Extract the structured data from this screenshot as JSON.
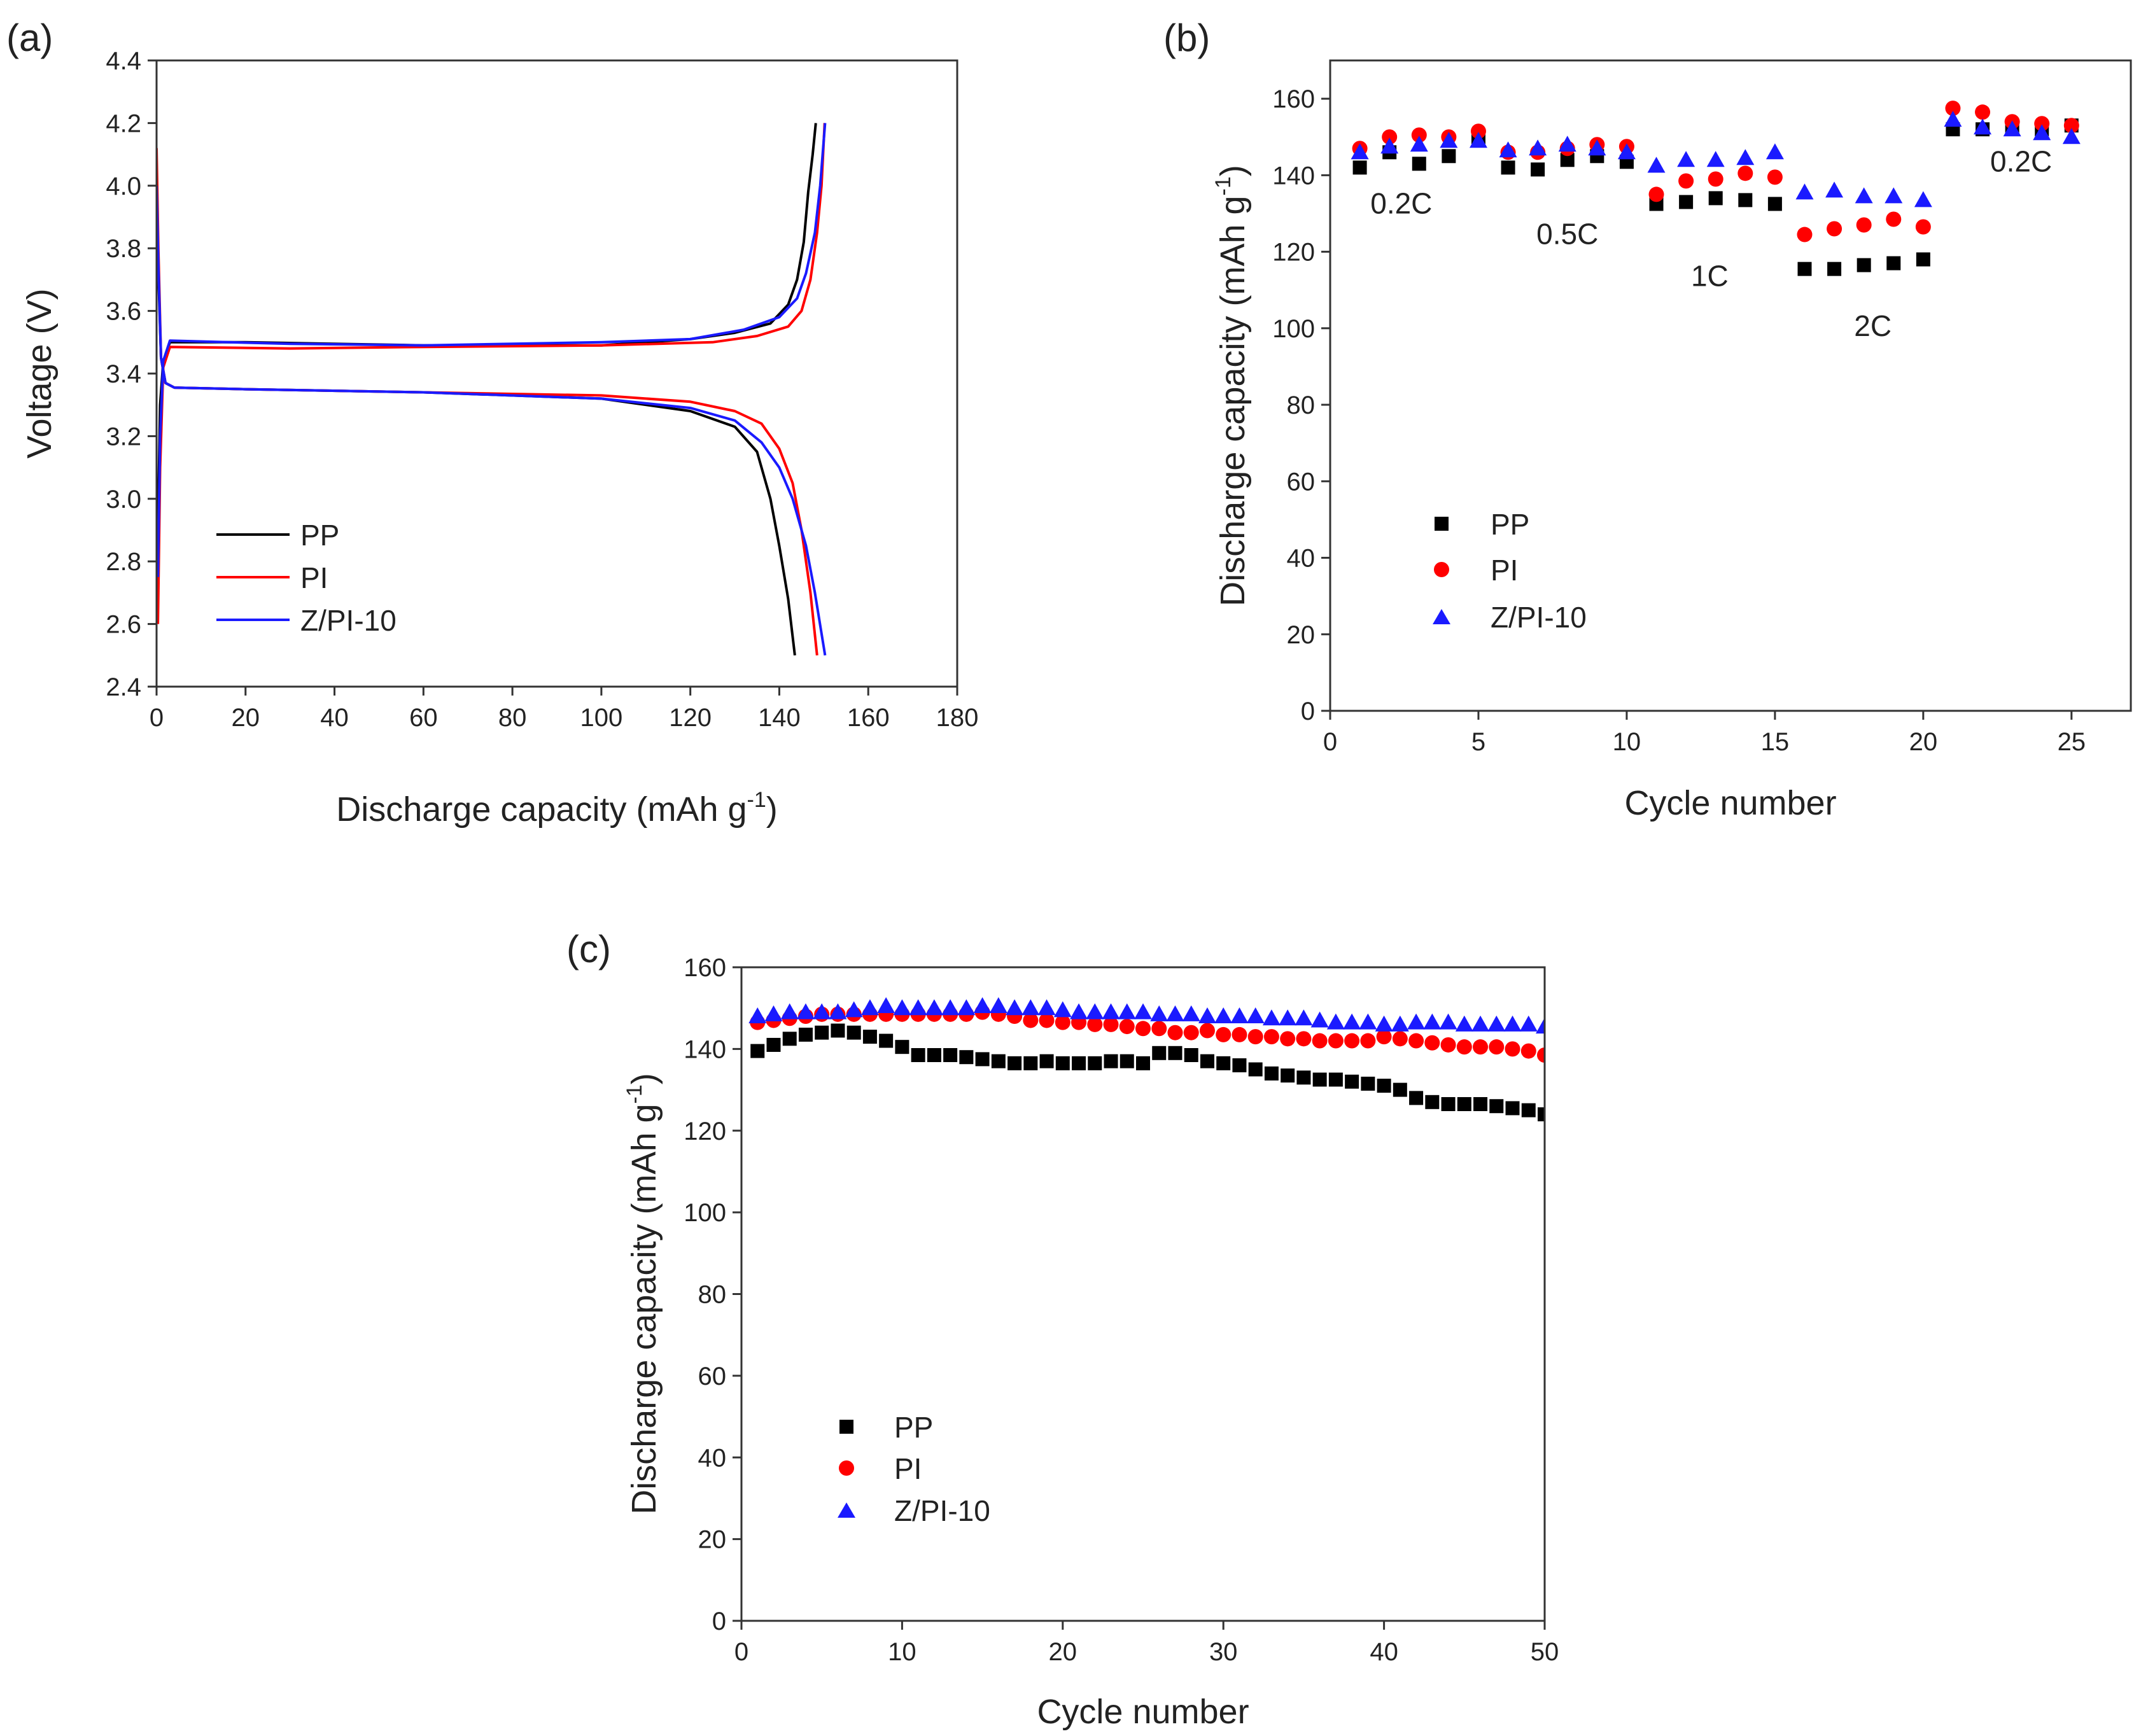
{
  "colors": {
    "pp": "#000000",
    "pi": "#ff0000",
    "zpi": "#1a1aff",
    "axis": "#333333"
  },
  "chart_data": [
    {
      "id": "a",
      "panel_label": "(a)",
      "type": "line",
      "xlabel": "Discharge capacity (mAh g",
      "xlabel_sup": "-1",
      "xlabel_end": ")",
      "ylabel": "Voltage (V)",
      "xlim": [
        0,
        180
      ],
      "ylim": [
        2.4,
        4.4
      ],
      "xticks": [
        0,
        20,
        40,
        60,
        80,
        100,
        120,
        140,
        160,
        180
      ],
      "yticks": [
        2.4,
        2.6,
        2.8,
        3.0,
        3.2,
        3.4,
        3.6,
        3.8,
        4.0,
        4.2,
        4.4
      ],
      "legend": [
        "PP",
        "PI",
        "Z/PI-10"
      ],
      "series": [
        {
          "name": "PP",
          "color_key": "pp",
          "charge": [
            [
              0.3,
              2.9
            ],
            [
              0.8,
              3.3
            ],
            [
              1.5,
              3.44
            ],
            [
              3,
              3.5
            ],
            [
              20,
              3.5
            ],
            [
              60,
              3.49
            ],
            [
              100,
              3.49
            ],
            [
              120,
              3.51
            ],
            [
              130,
              3.53
            ],
            [
              138,
              3.56
            ],
            [
              142,
              3.62
            ],
            [
              144,
              3.7
            ],
            [
              145.5,
              3.82
            ],
            [
              146.5,
              3.98
            ],
            [
              147.5,
              4.1
            ],
            [
              148.2,
              4.2
            ]
          ],
          "discharge": [
            [
              0,
              4.05
            ],
            [
              0.4,
              3.72
            ],
            [
              1,
              3.45
            ],
            [
              2,
              3.37
            ],
            [
              4,
              3.355
            ],
            [
              20,
              3.35
            ],
            [
              60,
              3.34
            ],
            [
              100,
              3.32
            ],
            [
              120,
              3.28
            ],
            [
              130,
              3.23
            ],
            [
              135,
              3.15
            ],
            [
              138,
              3.0
            ],
            [
              140,
              2.85
            ],
            [
              142,
              2.68
            ],
            [
              143.5,
              2.5
            ]
          ]
        },
        {
          "name": "PI",
          "color_key": "pi",
          "charge": [
            [
              0.3,
              2.6
            ],
            [
              0.8,
              3.1
            ],
            [
              1.5,
              3.42
            ],
            [
              3,
              3.485
            ],
            [
              30,
              3.48
            ],
            [
              60,
              3.485
            ],
            [
              100,
              3.49
            ],
            [
              125,
              3.5
            ],
            [
              135,
              3.52
            ],
            [
              142,
              3.55
            ],
            [
              145,
              3.6
            ],
            [
              147,
              3.7
            ],
            [
              148.5,
              3.85
            ],
            [
              149.5,
              4.0
            ],
            [
              150.2,
              4.2
            ]
          ],
          "discharge": [
            [
              0,
              4.12
            ],
            [
              0.4,
              3.8
            ],
            [
              1,
              3.45
            ],
            [
              2,
              3.37
            ],
            [
              4,
              3.355
            ],
            [
              20,
              3.35
            ],
            [
              60,
              3.34
            ],
            [
              100,
              3.33
            ],
            [
              120,
              3.31
            ],
            [
              130,
              3.28
            ],
            [
              136,
              3.24
            ],
            [
              140,
              3.16
            ],
            [
              143,
              3.05
            ],
            [
              145,
              2.9
            ],
            [
              147,
              2.7
            ],
            [
              148.5,
              2.5
            ]
          ]
        },
        {
          "name": "Z/PI-10",
          "color_key": "zpi",
          "charge": [
            [
              0.3,
              2.75
            ],
            [
              0.8,
              3.2
            ],
            [
              1.5,
              3.44
            ],
            [
              3,
              3.505
            ],
            [
              30,
              3.495
            ],
            [
              60,
              3.49
            ],
            [
              100,
              3.5
            ],
            [
              120,
              3.51
            ],
            [
              132,
              3.54
            ],
            [
              140,
              3.58
            ],
            [
              144,
              3.64
            ],
            [
              146,
              3.72
            ],
            [
              148,
              3.85
            ],
            [
              149.2,
              4.0
            ],
            [
              150.3,
              4.2
            ]
          ],
          "discharge": [
            [
              0,
              4.0
            ],
            [
              0.4,
              3.75
            ],
            [
              1,
              3.45
            ],
            [
              2,
              3.37
            ],
            [
              4,
              3.355
            ],
            [
              20,
              3.35
            ],
            [
              60,
              3.34
            ],
            [
              100,
              3.32
            ],
            [
              120,
              3.29
            ],
            [
              130,
              3.25
            ],
            [
              136,
              3.18
            ],
            [
              140,
              3.1
            ],
            [
              143,
              3.0
            ],
            [
              146,
              2.85
            ],
            [
              148,
              2.7
            ],
            [
              150.3,
              2.5
            ]
          ]
        }
      ]
    },
    {
      "id": "b",
      "panel_label": "(b)",
      "type": "scatter",
      "xlabel": "Cycle number",
      "ylabel": "Discharge capacity (mAh g",
      "ylabel_sup": "-1",
      "ylabel_end": ")",
      "xlim": [
        0,
        27
      ],
      "ylim": [
        0,
        170
      ],
      "xticks": [
        0,
        5,
        10,
        15,
        20,
        25
      ],
      "yticks": [
        0,
        20,
        40,
        60,
        80,
        100,
        120,
        140,
        160
      ],
      "legend": [
        "PP",
        "PI",
        "Z/PI-10"
      ],
      "annotations": [
        {
          "text": "0.2C",
          "x": 2.4,
          "y": 130
        },
        {
          "text": "0.5C",
          "x": 8.0,
          "y": 122
        },
        {
          "text": "1C",
          "x": 12.8,
          "y": 111
        },
        {
          "text": "2C",
          "x": 18.3,
          "y": 98
        },
        {
          "text": "0.2C",
          "x": 23.3,
          "y": 141
        }
      ],
      "x": [
        1,
        2,
        3,
        4,
        5,
        6,
        7,
        8,
        9,
        10,
        11,
        12,
        13,
        14,
        15,
        16,
        17,
        18,
        19,
        20,
        21,
        22,
        23,
        24,
        25
      ],
      "series": [
        {
          "name": "PP",
          "marker": "square",
          "color_key": "pp",
          "values": [
            142,
            146,
            143,
            145,
            150,
            142,
            141.5,
            144,
            145,
            143.5,
            132.5,
            133,
            134,
            133.5,
            132.5,
            115.5,
            115.5,
            116.5,
            117,
            118,
            152,
            152,
            152.5,
            152,
            153
          ]
        },
        {
          "name": "PI",
          "marker": "circle",
          "color_key": "pi",
          "values": [
            147,
            150,
            150.5,
            150,
            151.5,
            146,
            146,
            147,
            148,
            147.5,
            135,
            138.5,
            139,
            140.5,
            139.5,
            124.5,
            126,
            127,
            128.5,
            126.5,
            157.5,
            156.5,
            154,
            153.5,
            153
          ]
        },
        {
          "name": "Z/PI-10",
          "marker": "triangle",
          "color_key": "zpi",
          "values": [
            146,
            147.5,
            148,
            149,
            149,
            146.5,
            147,
            148,
            147,
            146,
            142.5,
            144,
            144,
            144.5,
            146,
            135.5,
            136,
            134.5,
            134.5,
            133.5,
            154.5,
            152.5,
            152,
            151,
            150
          ]
        }
      ]
    },
    {
      "id": "c",
      "panel_label": "(c)",
      "type": "scatter",
      "xlabel": "Cycle number",
      "ylabel": "Discharge capacity (mAh g",
      "ylabel_sup": "-1",
      "ylabel_end": ")",
      "xlim": [
        0,
        50
      ],
      "ylim": [
        0,
        160
      ],
      "xticks": [
        0,
        10,
        20,
        30,
        40,
        50
      ],
      "yticks": [
        0,
        20,
        40,
        60,
        80,
        100,
        120,
        140,
        160
      ],
      "legend": [
        "PP",
        "PI",
        "Z/PI-10"
      ],
      "x": [
        1,
        2,
        3,
        4,
        5,
        6,
        7,
        8,
        9,
        10,
        11,
        12,
        13,
        14,
        15,
        16,
        17,
        18,
        19,
        20,
        21,
        22,
        23,
        24,
        25,
        26,
        27,
        28,
        29,
        30,
        31,
        32,
        33,
        34,
        35,
        36,
        37,
        38,
        39,
        40,
        41,
        42,
        43,
        44,
        45,
        46,
        47,
        48,
        49,
        50
      ],
      "series": [
        {
          "name": "PP",
          "marker": "square",
          "color_key": "pp",
          "values": [
            139.5,
            141,
            142.5,
            143.5,
            144,
            144.5,
            144,
            143,
            142,
            140.5,
            138.5,
            138.5,
            138.5,
            138,
            137.5,
            137,
            136.5,
            136.5,
            137,
            136.5,
            136.5,
            136.5,
            137,
            137,
            136.5,
            139,
            139,
            138.5,
            137,
            136.5,
            136,
            135,
            134,
            133.5,
            133,
            132.5,
            132.5,
            132,
            131.5,
            131,
            130,
            128,
            127,
            126.5,
            126.5,
            126.5,
            126,
            125.5,
            125,
            124
          ]
        },
        {
          "name": "PI",
          "marker": "circle",
          "color_key": "pi",
          "values": [
            146.5,
            147,
            147.5,
            148,
            148.5,
            148.5,
            148.5,
            148.5,
            148.5,
            148.5,
            148.5,
            148.5,
            148.5,
            148.5,
            149,
            148.5,
            148,
            147,
            147,
            146.5,
            146.5,
            146,
            146,
            145.5,
            145,
            145,
            144,
            144,
            144.5,
            143.5,
            143.5,
            143,
            143,
            142.5,
            142.5,
            142,
            142,
            142,
            142,
            143,
            142.5,
            142,
            141.5,
            141,
            140.5,
            140.5,
            140.5,
            140,
            139.5,
            138.5
          ]
        },
        {
          "name": "Z/PI-10",
          "marker": "triangle",
          "color_key": "zpi",
          "values": [
            148,
            148.5,
            149,
            149,
            149,
            149,
            149.5,
            150,
            150.5,
            150,
            150,
            150,
            150,
            150,
            150.5,
            150.5,
            150,
            150,
            150,
            149.5,
            149,
            149,
            149,
            149,
            149,
            148.5,
            148.5,
            148.5,
            148,
            148,
            148,
            148,
            147.5,
            147.5,
            147.5,
            147,
            146.5,
            146.5,
            146.5,
            146,
            146,
            146.5,
            146.5,
            146.5,
            146,
            146,
            146,
            146,
            146,
            145.5
          ]
        }
      ]
    }
  ]
}
